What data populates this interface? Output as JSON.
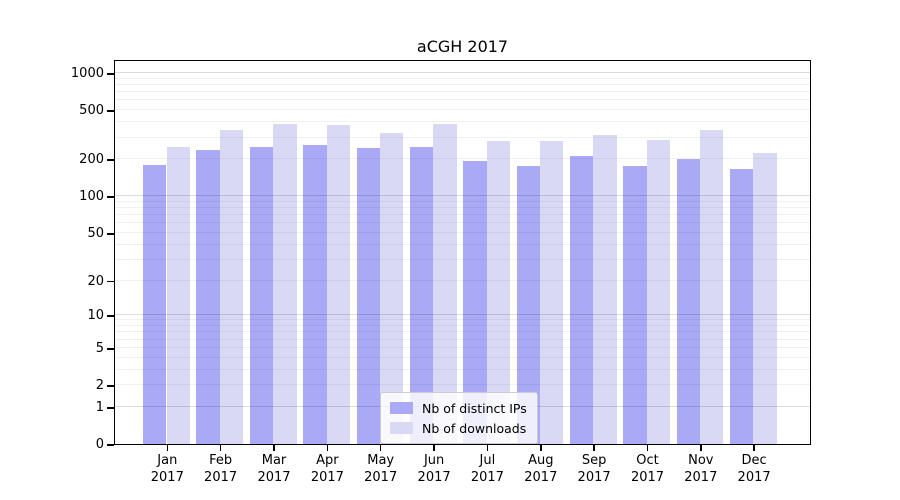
{
  "chart_data": {
    "type": "bar",
    "title": "aCGH 2017",
    "xlabel": "",
    "ylabel": "",
    "yscale": "log1p",
    "grid": true,
    "ylim": [
      0,
      1200
    ],
    "yticks": [
      0,
      1,
      2,
      5,
      10,
      20,
      50,
      100,
      200,
      500,
      1000
    ],
    "major_grid_values": [
      1,
      10,
      100,
      1000
    ],
    "legend_position": "lower center",
    "year": "2017",
    "categories": [
      "Jan",
      "Feb",
      "Mar",
      "Apr",
      "May",
      "Jun",
      "Jul",
      "Aug",
      "Sep",
      "Oct",
      "Nov",
      "Dec"
    ],
    "series": [
      {
        "name": "Nb of distinct IPs",
        "color": "#a9a9f6",
        "values": [
          178,
          240,
          250,
          262,
          245,
          250,
          192,
          175,
          212,
          175,
          202,
          167
        ]
      },
      {
        "name": "Nb of downloads",
        "color": "#d9d9f6",
        "values": [
          250,
          348,
          390,
          380,
          325,
          385,
          280,
          279,
          314,
          285,
          345,
          224
        ]
      }
    ]
  }
}
